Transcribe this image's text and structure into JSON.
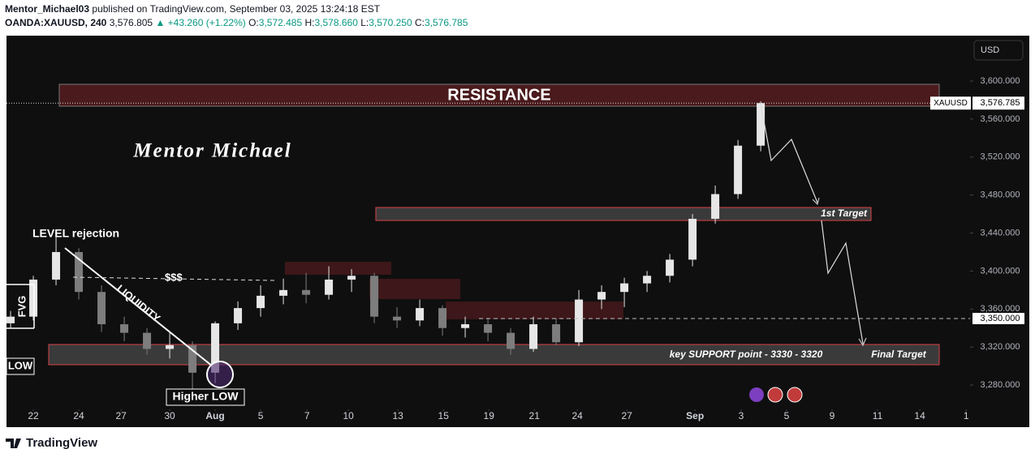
{
  "header": {
    "author": "Mentor_Michael03",
    "published": "published on TradingView.com, September 03, 2025 13:24:18 EST",
    "symbol": "OANDA:XAUUSD, 240",
    "last": "3,576.805",
    "arrow": "▲",
    "change": "+43.260 (+1.22%)",
    "open_label": "O:",
    "open": "3,572.485",
    "high_label": "H:",
    "high": "3,578.660",
    "low_label": "L:",
    "low": "3,570.250",
    "close_label": "C:",
    "close": "3,576.785"
  },
  "currency": "USD",
  "chart_data": {
    "type": "candlestick",
    "up_color": "#e6e6e6",
    "down_color": "#7d7d7d",
    "x": [
      -1,
      0,
      1,
      2,
      3,
      4,
      5,
      6,
      7,
      8,
      9,
      10,
      11,
      12,
      13,
      14,
      15,
      16,
      17,
      18,
      19,
      20,
      21,
      22,
      23,
      24,
      25,
      26,
      27,
      28,
      29,
      30,
      31,
      32
    ],
    "open": [
      3345,
      3352,
      3391,
      3420,
      3378,
      3344,
      3335,
      3318,
      3322,
      3293,
      3345,
      3361,
      3374,
      3380,
      3375,
      3391,
      3395,
      3352,
      3348,
      3361,
      3340,
      3344,
      3335,
      3318,
      3344,
      3325,
      3370,
      3378,
      3387,
      3395,
      3412,
      3455,
      3481,
      3532
    ],
    "high": [
      3358,
      3395,
      3438,
      3424,
      3385,
      3352,
      3340,
      3335,
      3326,
      3347,
      3368,
      3385,
      3392,
      3398,
      3405,
      3402,
      3398,
      3362,
      3370,
      3364,
      3352,
      3350,
      3340,
      3352,
      3350,
      3380,
      3385,
      3393,
      3400,
      3418,
      3460,
      3490,
      3538,
      3578.66
    ],
    "low": [
      3340,
      3348,
      3385,
      3370,
      3336,
      3326,
      3312,
      3308,
      3275,
      3282,
      3338,
      3352,
      3365,
      3366,
      3370,
      3378,
      3345,
      3340,
      3342,
      3332,
      3330,
      3326,
      3312,
      3315,
      3322,
      3321,
      3360,
      3362,
      3378,
      3388,
      3405,
      3450,
      3476,
      3526
    ],
    "close": [
      3352,
      3391,
      3420,
      3378,
      3344,
      3335,
      3318,
      3322,
      3293,
      3345,
      3361,
      3374,
      3380,
      3375,
      3391,
      3395,
      3352,
      3348,
      3361,
      3340,
      3344,
      3335,
      3318,
      3344,
      3325,
      3370,
      3378,
      3387,
      3395,
      3412,
      3455,
      3481,
      3532,
      3576.785
    ],
    "xlim": [
      -1.18,
      41.21
    ],
    "xticks": [
      {
        "value": 0,
        "label": "22"
      },
      {
        "value": 2,
        "label": "24"
      },
      {
        "value": 3.86,
        "label": "27"
      },
      {
        "value": 6,
        "label": "30"
      },
      {
        "value": 8,
        "label": "Aug"
      },
      {
        "value": 10,
        "label": "5"
      },
      {
        "value": 12.04,
        "label": "7"
      },
      {
        "value": 13.86,
        "label": "10"
      },
      {
        "value": 16.04,
        "label": "13"
      },
      {
        "value": 18.04,
        "label": "15"
      },
      {
        "value": 20.04,
        "label": "19"
      },
      {
        "value": 22.04,
        "label": "21"
      },
      {
        "value": 23.93,
        "label": "24"
      },
      {
        "value": 26.11,
        "label": "27"
      },
      {
        "value": 29.11,
        "label": "Sep"
      },
      {
        "value": 31.14,
        "label": "3"
      },
      {
        "value": 33.14,
        "label": "5"
      },
      {
        "value": 35.14,
        "label": "9"
      },
      {
        "value": 37.14,
        "label": "11"
      },
      {
        "value": 39,
        "label": "14"
      },
      {
        "value": 41.04,
        "label": "1"
      }
    ],
    "ylim": [
      3258.7,
      3647.8
    ],
    "yticks": [
      {
        "value": 3280,
        "label": "3,280.000"
      },
      {
        "value": 3320,
        "label": "3,320.000"
      },
      {
        "value": 3360,
        "label": "3,360.000"
      },
      {
        "value": 3400,
        "label": "3,400.000"
      },
      {
        "value": 3440,
        "label": "3,440.000"
      },
      {
        "value": 3480,
        "label": "3,480.000"
      },
      {
        "value": 3520,
        "label": "3,520.000"
      },
      {
        "value": 3560,
        "label": "3,560.000"
      },
      {
        "value": 3600,
        "label": "3,600.000"
      }
    ],
    "last_price": {
      "name": "XAUUSD",
      "value": 3576.785,
      "label": "3,576.785"
    },
    "level_line": {
      "value": 3350,
      "label": "3,350.000"
    }
  },
  "annotations": {
    "resistance": "RESISTANCE",
    "signature": "Mentor Michael",
    "level_rejection": "LEVEL rejection",
    "dollars": "$$$",
    "liquidity": "LIQUIDITY",
    "fvg": "FVG",
    "low": "LOW",
    "higher_low": "Higher LOW",
    "first_target": "1st Target",
    "support": "key SUPPORT point - 3330 - 3320",
    "final_target": "Final Target"
  },
  "footer": {
    "brand": "TradingView"
  }
}
